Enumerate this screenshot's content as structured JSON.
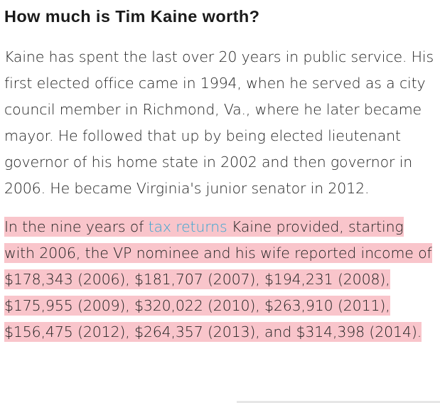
{
  "article": {
    "heading": "How much is Tim Kaine worth?",
    "paragraph1": "Kaine has spent the last over 20 years in public service. His first elected office came in 1994, when he served as a city council member in Richmond, Va., where he later became mayor. He followed that up by being elected lieutenant governor of his home state in 2002 and then governor in 2006. He became Virginia's junior senator in 2012.",
    "paragraph2": {
      "before_link": "In the nine years of ",
      "link_text": "tax returns",
      "after_link": " Kaine provided, starting with 2006, the VP nominee and his wife reported income of $178,343 (2006), $181,707 (2007), $194,231 (2008), $175,955 (2009), $320,022 (2010), $263,910 (2011), $156,475 (2012), $264,357 (2013), and $314,398 (2014)."
    }
  },
  "colors": {
    "highlight": "#f9c5cb",
    "link": "#3aa6d0",
    "text": "#222222"
  }
}
